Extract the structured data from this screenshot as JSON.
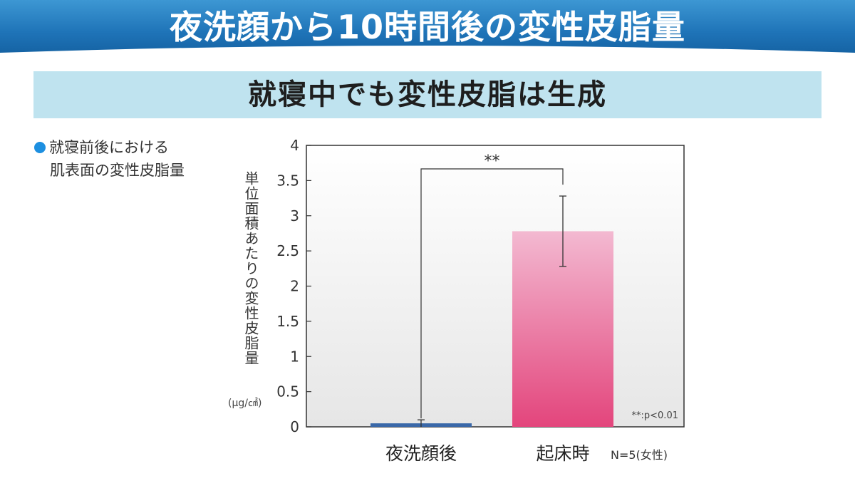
{
  "header": {
    "title": "夜洗顔から10時間後の変性皮脂量"
  },
  "subtitle": "就寝中でも変性皮脂は生成",
  "legend_note": {
    "line1": "就寝前後における",
    "line2": "肌表面の変性皮脂量"
  },
  "colors": {
    "header_blue": "#1f74b8",
    "subtitle_band": "#bfe3ef",
    "bar_evening": "#3a68a8",
    "bar_morning_top": "#f3b9d1",
    "bar_morning_bottom": "#e3457c",
    "bullet": "#1d8fe0"
  },
  "chart_data": {
    "type": "bar",
    "categories": [
      "夜洗顔後",
      "起床時"
    ],
    "values": [
      0.05,
      2.78
    ],
    "error_bars": [
      0.05,
      0.5
    ],
    "ylim": [
      0,
      4
    ],
    "yticks": [
      "0",
      "0.5",
      "1",
      "1.5",
      "2",
      "2.5",
      "3",
      "3.5",
      "4"
    ],
    "ytick_values": [
      0,
      0.5,
      1,
      1.5,
      2,
      2.5,
      3,
      3.5,
      4
    ],
    "ylabel": "単位面積あたりの変性皮脂量",
    "yunit": "(μg/㎠)",
    "xlabel": "",
    "grid": false,
    "significance": {
      "label": "**",
      "between": [
        0,
        1
      ]
    },
    "p_note": "**:p<0.01",
    "n_note": "N=5(女性)"
  }
}
